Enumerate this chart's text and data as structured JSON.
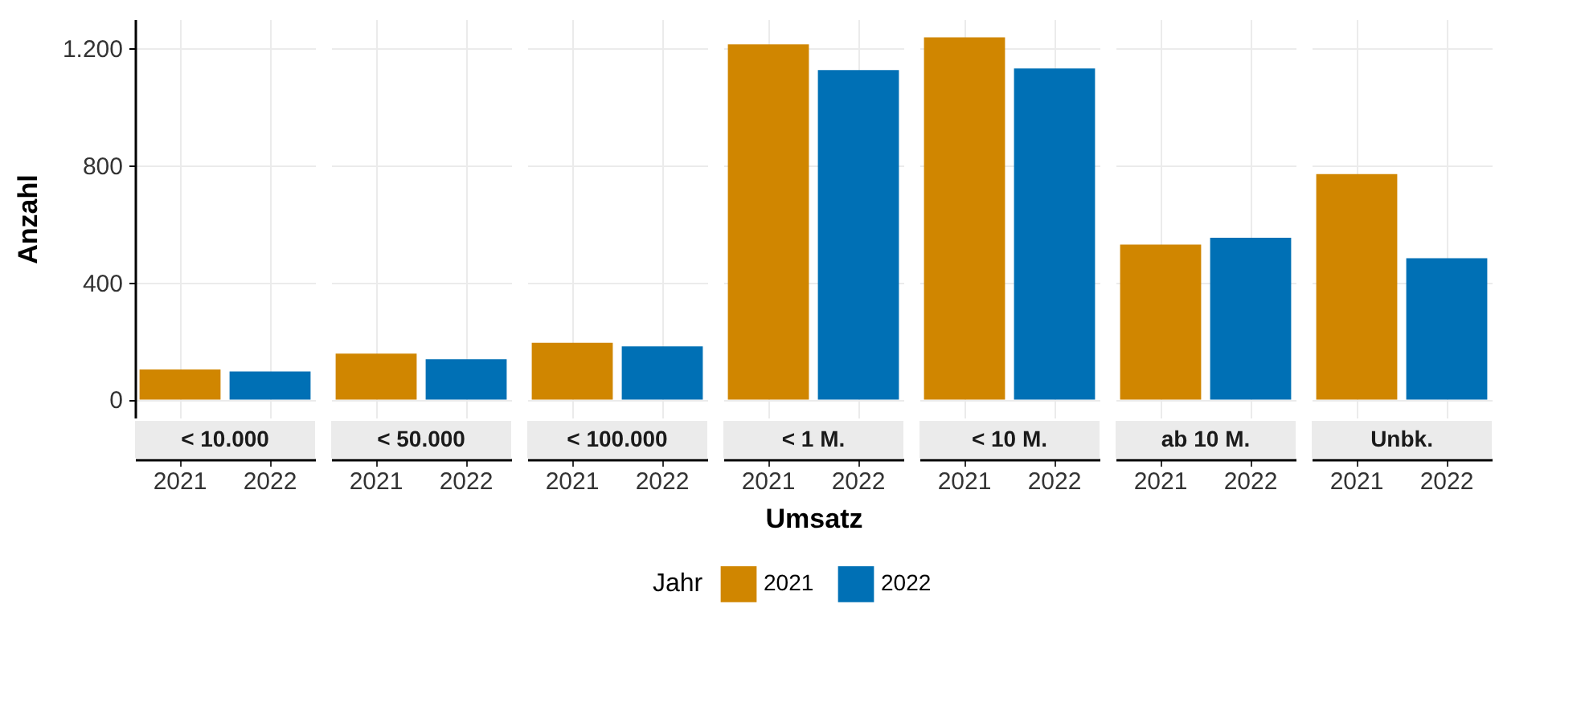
{
  "chart_data": [
    {
      "type": "bar",
      "title": "< 10.000",
      "ylabel": "Anzahl",
      "categories": [
        "2021",
        "2022"
      ],
      "ylim": [
        -62,
        1300
      ],
      "yticks": [
        0,
        400,
        800,
        {
          "value": 1200,
          "label": "1.200"
        }
      ],
      "grid": true,
      "tick_labels": "xy",
      "series": [
        {
          "name": "2021",
          "color": "#d08600",
          "values": [
            103,
            null
          ]
        },
        {
          "name": "2022",
          "color": "#0070b5",
          "values": [
            null,
            96
          ]
        }
      ]
    },
    {
      "type": "bar",
      "title": "< 50.000",
      "categories": [
        "2021",
        "2022"
      ],
      "ylim": [
        -62,
        1300
      ],
      "grid": true,
      "tick_labels": "x",
      "series": [
        {
          "name": "2021",
          "color": "#d08600",
          "values": [
            157,
            null
          ]
        },
        {
          "name": "2022",
          "color": "#0070b5",
          "values": [
            null,
            138
          ]
        }
      ]
    },
    {
      "type": "bar",
      "title": "< 100.000",
      "categories": [
        "2021",
        "2022"
      ],
      "ylim": [
        -62,
        1300
      ],
      "grid": true,
      "tick_labels": "x",
      "series": [
        {
          "name": "2021",
          "color": "#d08600",
          "values": [
            194,
            null
          ]
        },
        {
          "name": "2022",
          "color": "#0070b5",
          "values": [
            null,
            182
          ]
        }
      ]
    },
    {
      "type": "bar",
      "title": "< 1 M.",
      "xlabel": "Umsatz",
      "legend_title": "Jahr",
      "legend": "bottom",
      "categories": [
        "2021",
        "2022"
      ],
      "ylim": [
        -62,
        1300
      ],
      "grid": true,
      "tick_labels": "x",
      "series": [
        {
          "name": "2021",
          "color": "#d08600",
          "values": [
            1214,
            null
          ]
        },
        {
          "name": "2022",
          "color": "#0070b5",
          "values": [
            null,
            1126
          ]
        }
      ]
    },
    {
      "type": "bar",
      "title": "< 10 M.",
      "categories": [
        "2021",
        "2022"
      ],
      "ylim": [
        -62,
        1300
      ],
      "grid": true,
      "tick_labels": "x",
      "series": [
        {
          "name": "2021",
          "color": "#d08600",
          "values": [
            1238,
            null
          ]
        },
        {
          "name": "2022",
          "color": "#0070b5",
          "values": [
            null,
            1132
          ]
        }
      ]
    },
    {
      "type": "bar",
      "title": "ab 10 M.",
      "categories": [
        "2021",
        "2022"
      ],
      "ylim": [
        -62,
        1300
      ],
      "grid": true,
      "tick_labels": "x",
      "series": [
        {
          "name": "2021",
          "color": "#d08600",
          "values": [
            530,
            null
          ]
        },
        {
          "name": "2022",
          "color": "#0070b5",
          "values": [
            null,
            553
          ]
        }
      ]
    },
    {
      "type": "bar",
      "title": "Unbk.",
      "categories": [
        "2021",
        "2022"
      ],
      "ylim": [
        -62,
        1300
      ],
      "grid": true,
      "tick_labels": "x",
      "series": [
        {
          "name": "2021",
          "color": "#d08600",
          "values": [
            771,
            null
          ]
        },
        {
          "name": "2022",
          "color": "#0070b5",
          "values": [
            null,
            483
          ]
        }
      ]
    }
  ]
}
